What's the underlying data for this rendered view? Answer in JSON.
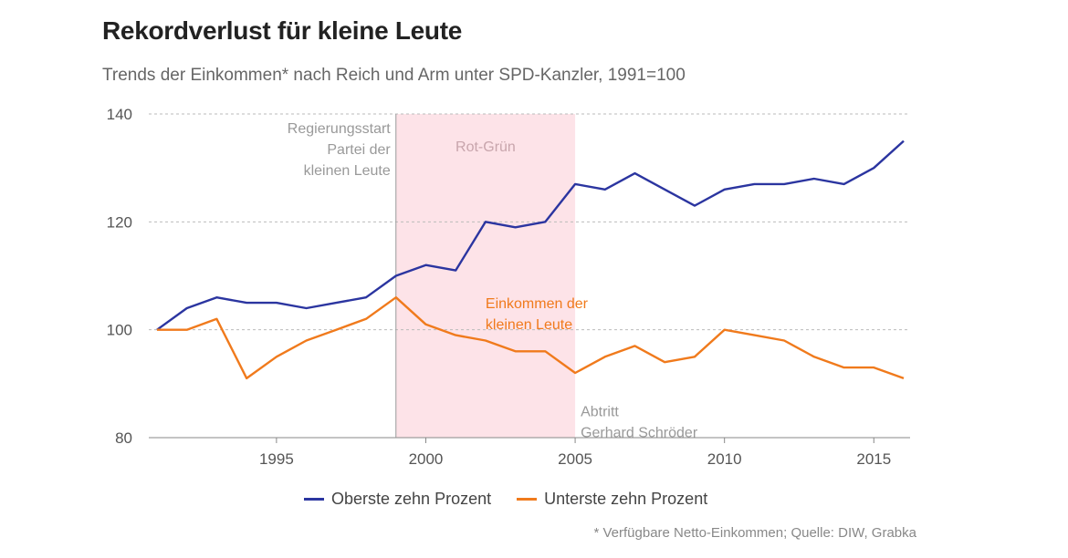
{
  "chart_data": {
    "type": "line",
    "title": "Rekordverlust für kleine Leute",
    "subtitle": "Trends der Einkommen* nach Reich und Arm unter SPD-Kanzler, 1991=100",
    "xlim": [
      1991,
      2016
    ],
    "ylim": [
      80,
      140
    ],
    "yticks": [
      80,
      100,
      120,
      140
    ],
    "xticks": [
      1995,
      2000,
      2005,
      2010,
      2015
    ],
    "grid": "horizontal-dashed",
    "x": [
      1991,
      1992,
      1993,
      1994,
      1995,
      1996,
      1997,
      1998,
      1999,
      2000,
      2001,
      2002,
      2003,
      2004,
      2005,
      2006,
      2007,
      2008,
      2009,
      2010,
      2011,
      2012,
      2013,
      2014,
      2015,
      2016
    ],
    "series": [
      {
        "name": "Oberste zehn Prozent",
        "color": "#2b35a0",
        "values": [
          100,
          104,
          106,
          105,
          105,
          104,
          105,
          106,
          110,
          112,
          111,
          120,
          119,
          120,
          127,
          126,
          129,
          126,
          123,
          126,
          127,
          127,
          128,
          127,
          130,
          135
        ]
      },
      {
        "name": "Unterste zehn Prozent",
        "color": "#f07a1c",
        "values": [
          100,
          100,
          102,
          91,
          95,
          98,
          100,
          102,
          106,
          101,
          99,
          98,
          96,
          96,
          92,
          95,
          97,
          94,
          95,
          100,
          99,
          98,
          95,
          93,
          93,
          91
        ]
      }
    ],
    "shaded_period": {
      "from": 1999,
      "to": 2005,
      "label": "Rot-Grün",
      "color": "#fde3e8"
    },
    "vertical_marker": {
      "x": 1999,
      "label_lines": [
        "Regierungsstart",
        "Partei der",
        "kleinen Leute"
      ]
    },
    "annotations": [
      {
        "x": 2005,
        "y": 84,
        "lines": [
          "Abtritt",
          "Gerhard Schröder"
        ],
        "style": "gray"
      },
      {
        "x": 2002,
        "y": 104,
        "lines": [
          "Einkommen der",
          "kleinen Leute"
        ],
        "style": "orange"
      }
    ],
    "legend_position": "bottom-center",
    "footnote": "* Verfügbare Netto-Einkommen; Quelle: DIW, Grabka"
  }
}
